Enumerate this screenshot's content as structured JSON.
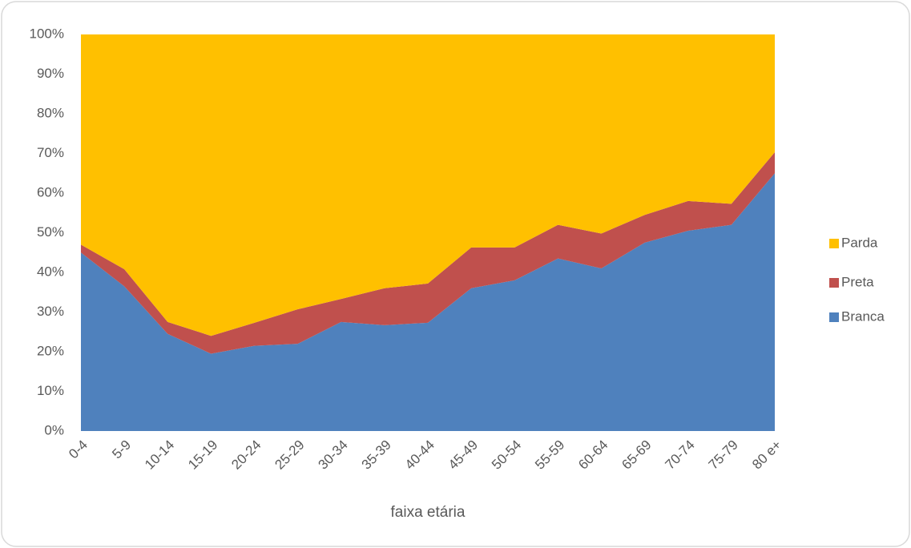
{
  "chart_data": {
    "type": "stacked_area_100",
    "x_label": "faixa etária",
    "categories": [
      "0-4",
      "5-9",
      "10-14",
      "15-19",
      "20-24",
      "25-29",
      "30-34",
      "35-39",
      "40-44",
      "45-49",
      "50-54",
      "55-59",
      "60-64",
      "65-69",
      "70-74",
      "75-79",
      "80 e+"
    ],
    "series": [
      {
        "name": "Branca",
        "color": "#4f81bd",
        "values": [
          45,
          36.5,
          24.5,
          19.5,
          21.5,
          22,
          27.5,
          26.7,
          27.3,
          36,
          38,
          43.5,
          41,
          47.5,
          50.5,
          52,
          65
        ]
      },
      {
        "name": "Preta",
        "color": "#c0504d",
        "values": [
          2,
          4.3,
          3,
          4.5,
          5.8,
          8.7,
          5.8,
          9.3,
          9.9,
          10.3,
          8.3,
          8.5,
          8.8,
          7,
          7.5,
          5.3,
          5.3
        ]
      },
      {
        "name": "Parda",
        "color": "#ffc000",
        "values": [
          53,
          59.2,
          72.5,
          76,
          72.7,
          69.3,
          66.7,
          64,
          62.8,
          53.7,
          53.7,
          48,
          50.2,
          45.5,
          42,
          42.7,
          29.7
        ]
      }
    ],
    "ylim": [
      0,
      100
    ],
    "yticks": [
      {
        "value": 0,
        "label": "0%"
      },
      {
        "value": 10,
        "label": "10%"
      },
      {
        "value": 20,
        "label": "20%"
      },
      {
        "value": 30,
        "label": "30%"
      },
      {
        "value": 40,
        "label": "40%"
      },
      {
        "value": 50,
        "label": "50%"
      },
      {
        "value": 60,
        "label": "60%"
      },
      {
        "value": 70,
        "label": "70%"
      },
      {
        "value": 80,
        "label": "80%"
      },
      {
        "value": 90,
        "label": "90%"
      },
      {
        "value": 100,
        "label": "100%"
      }
    ],
    "grid": false,
    "legend_position": "right"
  }
}
